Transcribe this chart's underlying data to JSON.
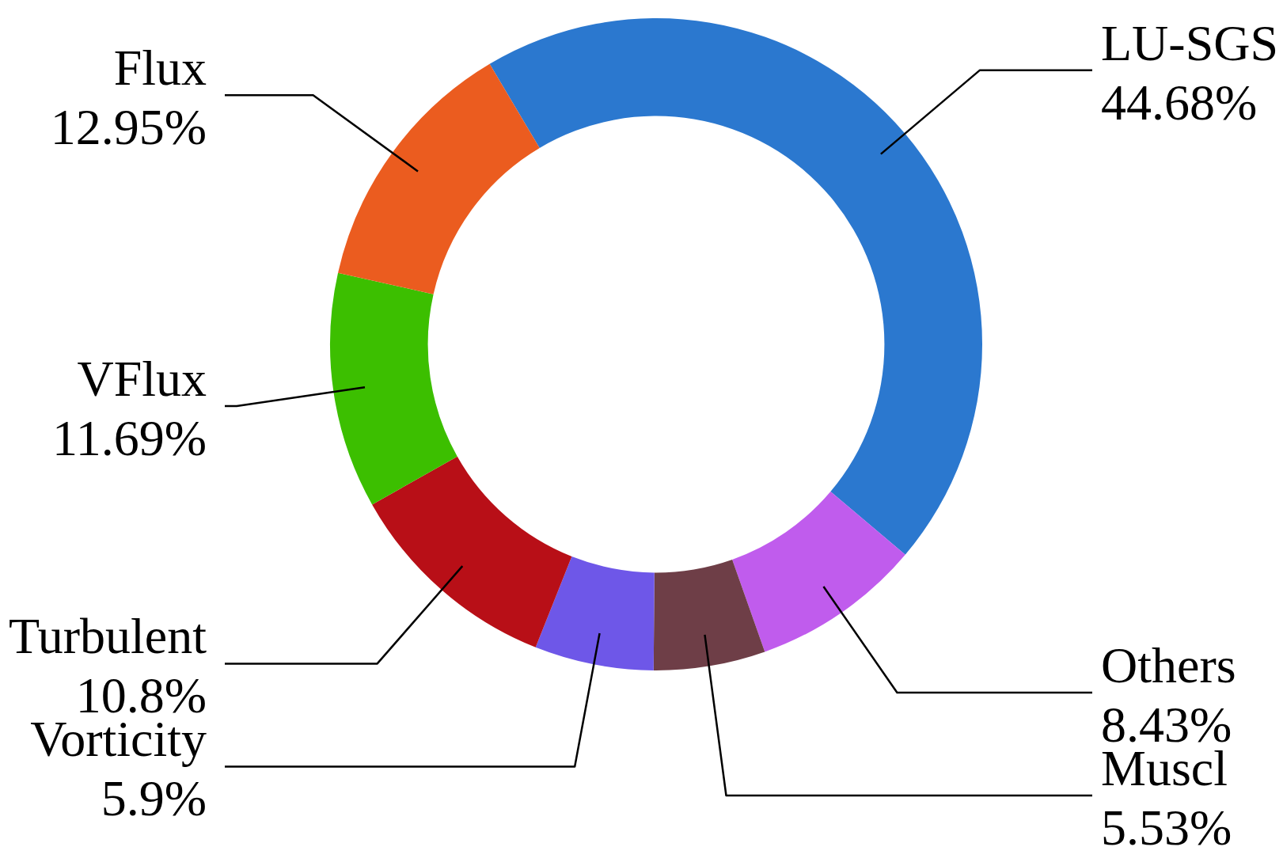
{
  "chart_data": {
    "type": "donut",
    "categories": [
      "LU-SGS",
      "Others",
      "Muscl",
      "Vorticity",
      "Turbulent",
      "VFlux",
      "Flux"
    ],
    "values": [
      44.68,
      8.43,
      5.53,
      5.9,
      10.8,
      11.69,
      12.95
    ],
    "value_labels": [
      "44.68%",
      "8.43%",
      "5.53%",
      "5.9%",
      "10.8%",
      "11.69%",
      "12.95%"
    ],
    "colors": [
      "#2b78cf",
      "#c05ced",
      "#6e3e47",
      "#6e57e8",
      "#b80f17",
      "#3cbf00",
      "#eb5c1f"
    ],
    "legend": false
  }
}
